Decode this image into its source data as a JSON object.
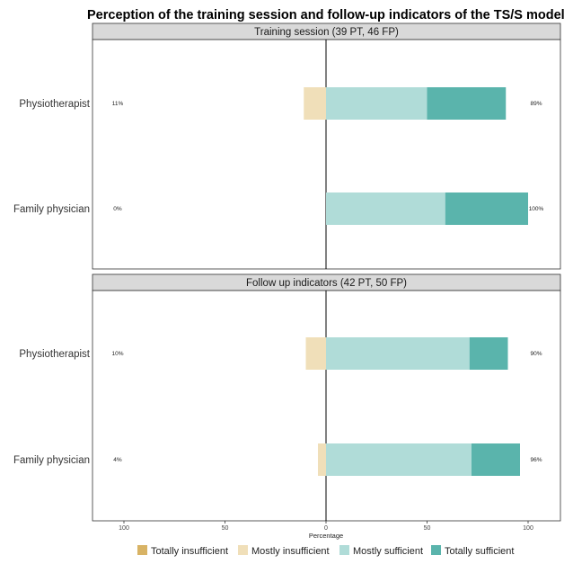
{
  "chart_data": {
    "type": "bar",
    "subtype": "diverging-stacked-horizontal",
    "title": "Perception of the training session and follow-up indicators of the TS/S model",
    "xlabel": "Percentage",
    "ylabel": "",
    "xlim": [
      -100,
      100
    ],
    "x_ticks": [
      -100,
      -50,
      0,
      50,
      100
    ],
    "x_tick_labels": [
      "100",
      "50",
      "0",
      "50",
      "100"
    ],
    "grid": false,
    "legend_position": "bottom",
    "legend": [
      {
        "key": "totally_insufficient",
        "label": "Totally insufficient",
        "color": "#d8b365"
      },
      {
        "key": "mostly_insufficient",
        "label": "Mostly insufficient",
        "color": "#f0dfb9"
      },
      {
        "key": "mostly_sufficient",
        "label": "Mostly sufficient",
        "color": "#b0dcd8"
      },
      {
        "key": "totally_sufficient",
        "label": "Totally sufficient",
        "color": "#5ab4ac"
      }
    ],
    "panels": [
      {
        "strip": "Training session (39 PT, 46 FP)",
        "rows": [
          {
            "category": "Physiotherapist",
            "totally_insufficient": 0,
            "mostly_insufficient": 11,
            "mostly_sufficient": 50,
            "totally_sufficient": 39,
            "left_label": "11%",
            "right_label": "89%"
          },
          {
            "category": "Family physician",
            "totally_insufficient": 0,
            "mostly_insufficient": 0,
            "mostly_sufficient": 59,
            "totally_sufficient": 41,
            "left_label": "0%",
            "right_label": "100%"
          }
        ]
      },
      {
        "strip": "Follow up indicators (42 PT, 50 FP)",
        "rows": [
          {
            "category": "Physiotherapist",
            "totally_insufficient": 0,
            "mostly_insufficient": 10,
            "mostly_sufficient": 71,
            "totally_sufficient": 19,
            "left_label": "10%",
            "right_label": "90%"
          },
          {
            "category": "Family physician",
            "totally_insufficient": 0,
            "mostly_insufficient": 4,
            "mostly_sufficient": 72,
            "totally_sufficient": 24,
            "left_label": "4%",
            "right_label": "96%"
          }
        ]
      }
    ]
  }
}
